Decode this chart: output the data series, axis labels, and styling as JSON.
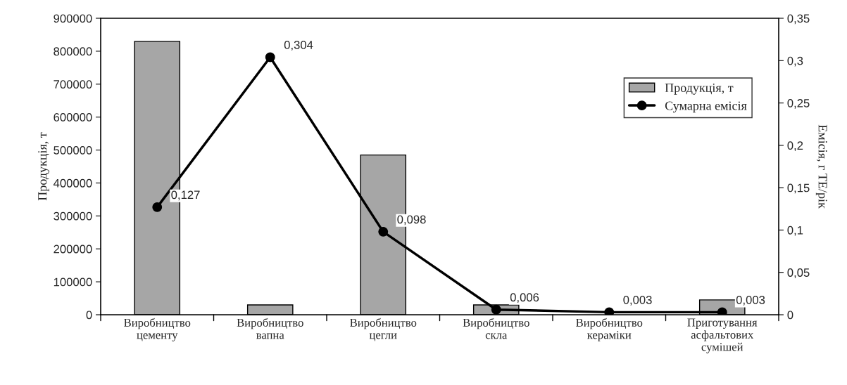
{
  "chart_data": {
    "type": "bar",
    "categories": [
      "Виробництво\nцементу",
      "Виробництво\nвапна",
      "Виробництво\nцегли",
      "Виробництво\nскла",
      "Виробництво\nкераміки",
      "Приготування\nасфальтових\nсумішей"
    ],
    "ylabel": "Продукція, т",
    "y2label": "Емісія, г ТЕ/рік",
    "ylim": [
      0,
      900000
    ],
    "yticks": [
      0,
      100000,
      200000,
      300000,
      400000,
      500000,
      600000,
      700000,
      800000,
      900000
    ],
    "y2lim": [
      0,
      0.35
    ],
    "y2ticks": [
      {
        "value": 0,
        "label": "0"
      },
      {
        "value": 0.05,
        "label": "0,05"
      },
      {
        "value": 0.1,
        "label": "0,1"
      },
      {
        "value": 0.15,
        "label": "0,15"
      },
      {
        "value": 0.2,
        "label": "0,2"
      },
      {
        "value": 0.25,
        "label": "0,25"
      },
      {
        "value": 0.3,
        "label": "0,3"
      },
      {
        "value": 0.35,
        "label": "0,35"
      }
    ],
    "series": [
      {
        "name": "Продукція, т",
        "color": "#a6a6a6",
        "values": [
          830000,
          30000,
          485000,
          30000,
          null,
          45000
        ]
      },
      {
        "name": "Сумарна емісія",
        "type": "line",
        "axis": "y2",
        "color": "#000000",
        "marker": "circle",
        "values": [
          0.127,
          0.304,
          0.098,
          0.006,
          0.003,
          0.003
        ],
        "value_labels": [
          "0,127",
          "0,304",
          "0,098",
          "0,006",
          "0,003",
          "0,003"
        ]
      }
    ],
    "legend": "top right",
    "grid": false
  }
}
